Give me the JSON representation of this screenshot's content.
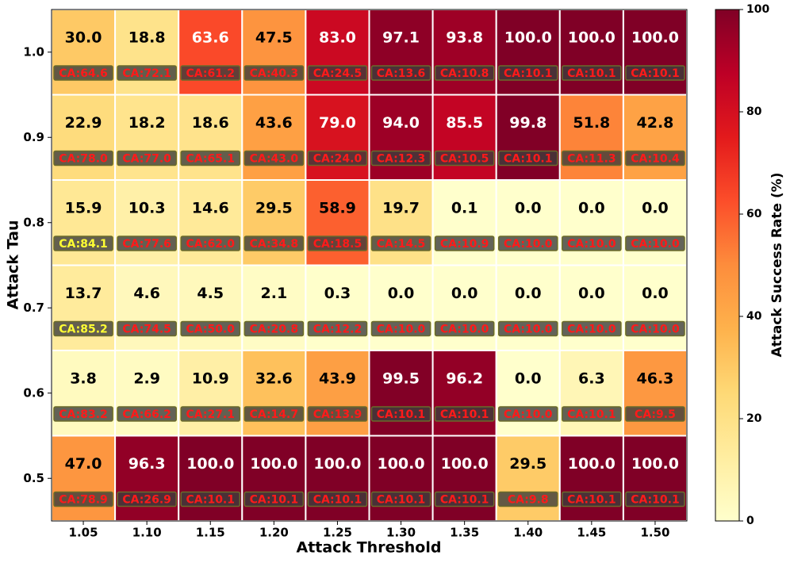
{
  "chart_data": {
    "type": "heatmap",
    "x_label": "Attack Threshold",
    "y_label": "Attack Tau",
    "colorbar_label": "Attack Success Rate (%)",
    "colormap": "YlOrRd",
    "x_categories": [
      "1.05",
      "1.10",
      "1.15",
      "1.20",
      "1.25",
      "1.30",
      "1.35",
      "1.40",
      "1.45",
      "1.50"
    ],
    "y_categories": [
      "1.0",
      "0.9",
      "0.8",
      "0.7",
      "0.6",
      "0.5"
    ],
    "values": [
      [
        30.0,
        18.8,
        63.6,
        47.5,
        83.0,
        97.1,
        93.8,
        100.0,
        100.0,
        100.0
      ],
      [
        22.9,
        18.2,
        18.6,
        43.6,
        79.0,
        94.0,
        85.5,
        99.8,
        51.8,
        42.8
      ],
      [
        15.9,
        10.3,
        14.6,
        29.5,
        58.9,
        19.7,
        0.1,
        0.0,
        0.0,
        0.0
      ],
      [
        13.7,
        4.6,
        4.5,
        2.1,
        0.3,
        0.0,
        0.0,
        0.0,
        0.0,
        0.0
      ],
      [
        3.8,
        2.9,
        10.9,
        32.6,
        43.9,
        99.5,
        96.2,
        0.0,
        6.3,
        46.3
      ],
      [
        47.0,
        96.3,
        100.0,
        100.0,
        100.0,
        100.0,
        100.0,
        29.5,
        100.0,
        100.0
      ]
    ],
    "value_labels": [
      [
        "30.0",
        "18.8",
        "63.6",
        "47.5",
        "83.0",
        "97.1",
        "93.8",
        "100.0",
        "100.0",
        "100.0"
      ],
      [
        "22.9",
        "18.2",
        "18.6",
        "43.6",
        "79.0",
        "94.0",
        "85.5",
        "99.8",
        "51.8",
        "42.8"
      ],
      [
        "15.9",
        "10.3",
        "14.6",
        "29.5",
        "58.9",
        "19.7",
        "0.1",
        "0.0",
        "0.0",
        "0.0"
      ],
      [
        "13.7",
        "4.6",
        "4.5",
        "2.1",
        "0.3",
        "0.0",
        "0.0",
        "0.0",
        "0.0",
        "0.0"
      ],
      [
        "3.8",
        "2.9",
        "10.9",
        "32.6",
        "43.9",
        "99.5",
        "96.2",
        "0.0",
        "6.3",
        "46.3"
      ],
      [
        "47.0",
        "96.3",
        "100.0",
        "100.0",
        "100.0",
        "100.0",
        "100.0",
        "29.5",
        "100.0",
        "100.0"
      ]
    ],
    "ca_labels": [
      [
        "CA:64.6",
        "CA:72.1",
        "CA:61.2",
        "CA:40.3",
        "CA:24.5",
        "CA:13.6",
        "CA:10.8",
        "CA:10.1",
        "CA:10.1",
        "CA:10.1"
      ],
      [
        "CA:78.0",
        "CA:77.0",
        "CA:65.1",
        "CA:43.0",
        "CA:24.0",
        "CA:12.3",
        "CA:10.5",
        "CA:10.1",
        "CA:11.3",
        "CA:10.4"
      ],
      [
        "CA:84.1",
        "CA:77.6",
        "CA:62.0",
        "CA:34.8",
        "CA:18.5",
        "CA:14.5",
        "CA:10.9",
        "CA:10.0",
        "CA:10.0",
        "CA:10.0"
      ],
      [
        "CA:85.2",
        "CA:74.5",
        "CA:50.0",
        "CA:20.8",
        "CA:12.2",
        "CA:10.0",
        "CA:10.0",
        "CA:10.0",
        "CA:10.0",
        "CA:10.0"
      ],
      [
        "CA:83.2",
        "CA:66.2",
        "CA:27.1",
        "CA:14.7",
        "CA:13.9",
        "CA:10.1",
        "CA:10.1",
        "CA:10.0",
        "CA:10.1",
        "CA:9.5"
      ],
      [
        "CA:78.9",
        "CA:26.9",
        "CA:10.1",
        "CA:10.1",
        "CA:10.1",
        "CA:10.1",
        "CA:10.1",
        "CA:9.8",
        "CA:10.1",
        "CA:10.1"
      ]
    ],
    "clim": [
      0,
      100
    ],
    "cticks": [
      0,
      20,
      40,
      60,
      80,
      100
    ]
  }
}
